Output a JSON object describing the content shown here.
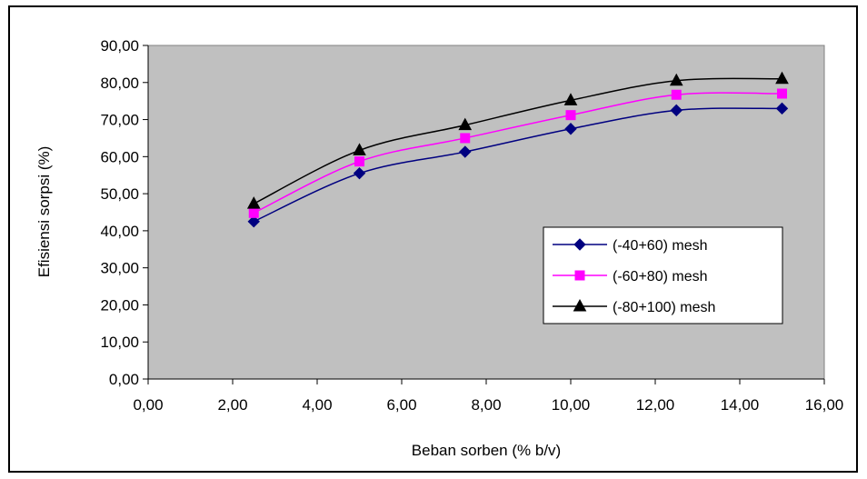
{
  "chart_data": {
    "type": "line",
    "xlabel": "Beban sorben (% b/v)",
    "ylabel": "Efisiensi sorpsi (%)",
    "xlim": [
      0,
      16
    ],
    "ylim": [
      0,
      90
    ],
    "x_ticks": [
      "0,00",
      "2,00",
      "4,00",
      "6,00",
      "8,00",
      "10,00",
      "12,00",
      "14,00",
      "16,00"
    ],
    "y_ticks": [
      "0,00",
      "10,00",
      "20,00",
      "30,00",
      "40,00",
      "50,00",
      "60,00",
      "70,00",
      "80,00",
      "90,00"
    ],
    "grid": false,
    "legend_position": "right",
    "plot_background": "#c0c0c0",
    "x": [
      2.5,
      5,
      7.5,
      10,
      12.5,
      15
    ],
    "series": [
      {
        "name": "(-40+60) mesh",
        "color": "#000080",
        "marker": "diamond",
        "values": [
          42.5,
          55.5,
          61.3,
          67.5,
          72.5,
          73.0
        ]
      },
      {
        "name": "(-60+80) mesh",
        "color": "#ff00ff",
        "marker": "square",
        "values": [
          44.8,
          58.7,
          65.0,
          71.2,
          76.7,
          77.0
        ]
      },
      {
        "name": "(-80+100) mesh",
        "color": "#000000",
        "marker": "triangle",
        "values": [
          47.3,
          61.7,
          68.5,
          75.2,
          80.5,
          81.0
        ]
      }
    ]
  }
}
